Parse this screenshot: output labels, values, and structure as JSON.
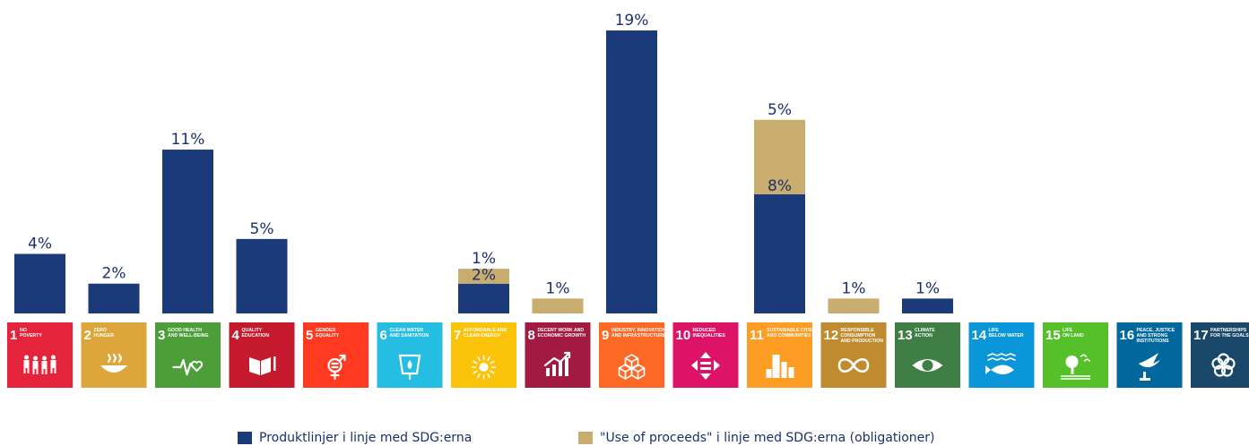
{
  "chart_data": {
    "type": "bar",
    "stacked": true,
    "categories": [
      "1 NO POVERTY",
      "2 ZERO HUNGER",
      "3 GOOD HEALTH AND WELL-BEING",
      "4 QUALITY EDUCATION",
      "5 GENDER EQUALITY",
      "6 CLEAN WATER AND SANITATION",
      "7 AFFORDABLE AND CLEAN ENERGY",
      "8 DECENT WORK AND ECONOMIC GROWTH",
      "9 INDUSTRY, INNOVATION AND INFRASTRUCTURE",
      "10 REDUCED INEQUALITIES",
      "11 SUSTAINABLE CITIES AND COMMUNITIES",
      "12 RESPONSIBLE CONSUMPTION AND PRODUCTION",
      "13 CLIMATE ACTION",
      "14 LIFE BELOW WATER",
      "15 LIFE ON LAND",
      "16 PEACE, JUSTICE AND STRONG INSTITUTIONS",
      "17 PARTNERSHIPS FOR THE GOALS"
    ],
    "series": [
      {
        "name": "Produktlinjer i linje med SDG:erna",
        "color": "#1b3a7a",
        "values": [
          4,
          2,
          11,
          5,
          0,
          0,
          2,
          0,
          19,
          0,
          8,
          0,
          1,
          0,
          0,
          0,
          0
        ]
      },
      {
        "name": "\"Use of proceeds\" i linje med SDG:erna (obligationer)",
        "color": "#c9ad6e",
        "values": [
          0,
          0,
          0,
          0,
          0,
          0,
          1,
          1,
          0,
          0,
          5,
          1,
          0,
          0,
          0,
          0,
          0
        ]
      }
    ],
    "labels": [
      [
        {
          "text": "4%",
          "at": "top"
        }
      ],
      [
        {
          "text": "2%",
          "at": "top"
        }
      ],
      [
        {
          "text": "11%",
          "at": "top"
        }
      ],
      [
        {
          "text": "5%",
          "at": "top"
        }
      ],
      [],
      [],
      [
        {
          "text": "1%",
          "at": "top"
        },
        {
          "text": "2%",
          "at": "seg0"
        }
      ],
      [
        {
          "text": "1%",
          "at": "top"
        }
      ],
      [
        {
          "text": "19%",
          "at": "top"
        }
      ],
      [],
      [
        {
          "text": "5%",
          "at": "top"
        },
        {
          "text": "8%",
          "at": "seg0"
        }
      ],
      [
        {
          "text": "1%",
          "at": "top"
        }
      ],
      [
        {
          "text": "1%",
          "at": "top"
        }
      ],
      [],
      [],
      [],
      []
    ],
    "ylim": [
      0,
      19
    ],
    "grid": false,
    "legend_position": "bottom"
  },
  "tiles": [
    {
      "num": "1",
      "lines": [
        "NO",
        "POVERTY"
      ],
      "color": "#e5243b",
      "icon": "family-icon"
    },
    {
      "num": "2",
      "lines": [
        "ZERO",
        "HUNGER"
      ],
      "color": "#dda63a",
      "icon": "bowl-icon"
    },
    {
      "num": "3",
      "lines": [
        "GOOD HEALTH",
        "AND WELL-BEING"
      ],
      "color": "#4c9f38",
      "icon": "heartbeat-icon"
    },
    {
      "num": "4",
      "lines": [
        "QUALITY",
        "EDUCATION"
      ],
      "color": "#c5192d",
      "icon": "book-icon"
    },
    {
      "num": "5",
      "lines": [
        "GENDER",
        "EQUALITY"
      ],
      "color": "#ff3a21",
      "icon": "gender-icon"
    },
    {
      "num": "6",
      "lines": [
        "CLEAN WATER",
        "AND SANITATION"
      ],
      "color": "#26bde2",
      "icon": "water-icon"
    },
    {
      "num": "7",
      "lines": [
        "AFFORDABLE AND",
        "CLEAN ENERGY"
      ],
      "color": "#fcc30b",
      "icon": "sun-icon"
    },
    {
      "num": "8",
      "lines": [
        "DECENT WORK AND",
        "ECONOMIC GROWTH"
      ],
      "color": "#a21942",
      "icon": "growth-chart-icon"
    },
    {
      "num": "9",
      "lines": [
        "INDUSTRY, INNOVATION",
        "AND INFRASTRUCTURE"
      ],
      "color": "#fd6925",
      "icon": "cubes-icon"
    },
    {
      "num": "10",
      "lines": [
        "REDUCED",
        "INEQUALITIES"
      ],
      "color": "#dd1367",
      "icon": "equal-arrows-icon"
    },
    {
      "num": "11",
      "lines": [
        "SUSTAINABLE CITIES",
        "AND COMMUNITIES"
      ],
      "color": "#fd9d24",
      "icon": "city-icon"
    },
    {
      "num": "12",
      "lines": [
        "RESPONSIBLE",
        "CONSUMPTION",
        "AND PRODUCTION"
      ],
      "color": "#bf8b2e",
      "icon": "infinity-icon"
    },
    {
      "num": "13",
      "lines": [
        "CLIMATE",
        "ACTION"
      ],
      "color": "#3f7e44",
      "icon": "eye-globe-icon"
    },
    {
      "num": "14",
      "lines": [
        "LIFE",
        "BELOW WATER"
      ],
      "color": "#0a97d9",
      "icon": "fish-icon"
    },
    {
      "num": "15",
      "lines": [
        "LIFE",
        "ON LAND"
      ],
      "color": "#56c02b",
      "icon": "tree-icon"
    },
    {
      "num": "16",
      "lines": [
        "PEACE, JUSTICE",
        "AND STRONG",
        "INSTITUTIONS"
      ],
      "color": "#00689d",
      "icon": "dove-icon"
    },
    {
      "num": "17",
      "lines": [
        "PARTNERSHIPS",
        "FOR THE GOALS"
      ],
      "color": "#19486a",
      "icon": "rings-icon"
    }
  ],
  "legend": [
    {
      "label": "Produktlinjer i linje med SDG:erna",
      "color": "#1b3a7a"
    },
    {
      "label": "\"Use of proceeds\" i linje med SDG:erna (obligationer)",
      "color": "#c9ad6e"
    }
  ]
}
